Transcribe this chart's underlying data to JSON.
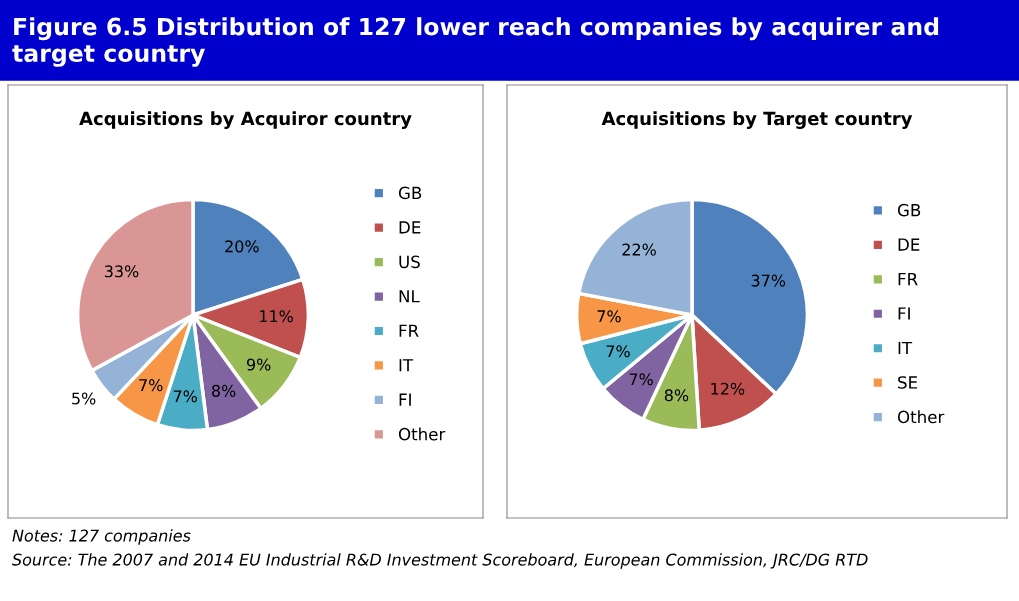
{
  "chart_data": [
    {
      "type": "other",
      "title": "Figure 6.5 Distribution of 127 lower reach companies by acquirer and target country",
      "annotations": [
        "Notes: 127 companies",
        "Source: The 2007 and 2014 EU Industrial R&D Investment Scoreboard, European Commission, JRC/DG RTD"
      ]
    },
    {
      "type": "pie",
      "title": "Acquisitions by Acquiror country",
      "categories": [
        "GB",
        "DE",
        "US",
        "NL",
        "FR",
        "IT",
        "FI",
        "Other"
      ],
      "values": [
        20,
        11,
        9,
        8,
        7,
        7,
        5,
        33
      ],
      "value_labels": [
        "20%",
        "11%",
        "9%",
        "8%",
        "7%",
        "7%",
        "5%",
        "33%"
      ],
      "colors": [
        "#4f81bd",
        "#c0504d",
        "#9bbb59",
        "#8064a2",
        "#4bacc6",
        "#f79646",
        "#95b3d7",
        "#d99694"
      ],
      "legend": "right"
    },
    {
      "type": "pie",
      "title": "Acquisitions by Target country",
      "categories": [
        "GB",
        "DE",
        "FR",
        "FI",
        "IT",
        "SE",
        "Other"
      ],
      "values": [
        37,
        12,
        8,
        7,
        7,
        7,
        22
      ],
      "value_labels": [
        "37%",
        "12%",
        "8%",
        "7%",
        "7%",
        "7%",
        "22%"
      ],
      "colors": [
        "#4f81bd",
        "#c0504d",
        "#9bbb59",
        "#8064a2",
        "#4bacc6",
        "#f79646",
        "#95b3d7"
      ],
      "legend": "right"
    }
  ]
}
